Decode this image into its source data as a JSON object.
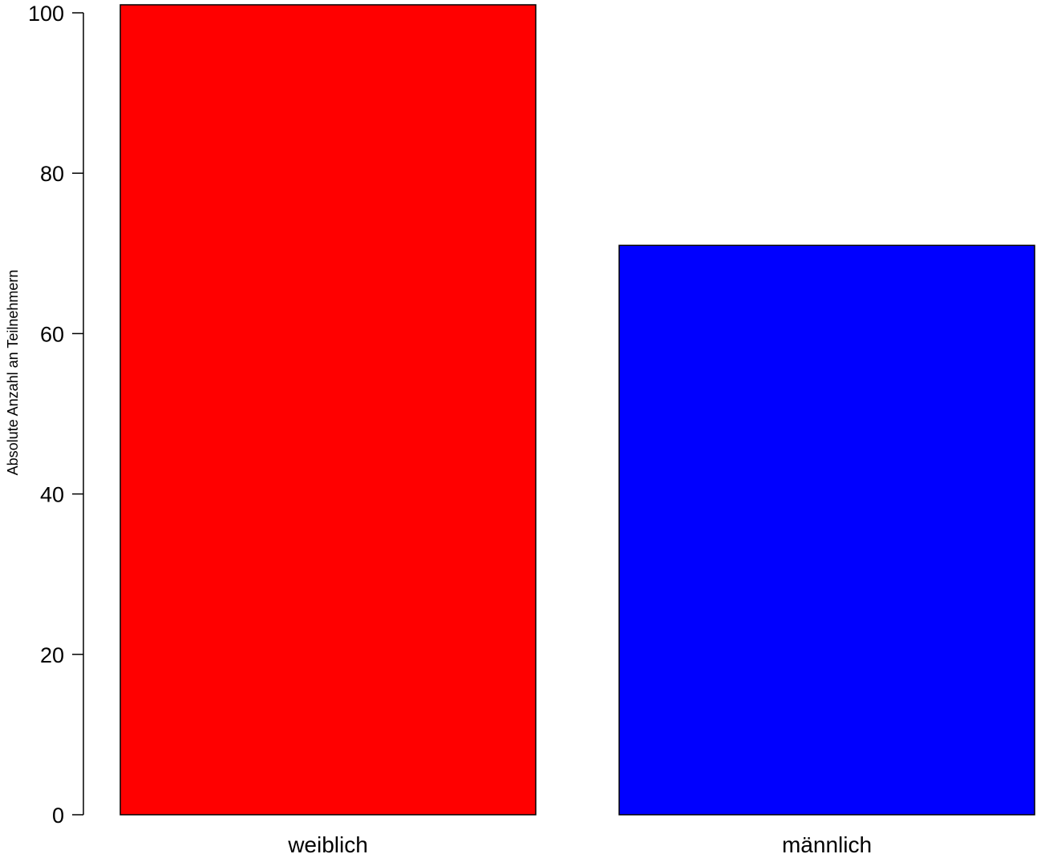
{
  "chart_data": {
    "type": "bar",
    "categories": [
      "weiblich",
      "männlich"
    ],
    "values": [
      101,
      71
    ],
    "colors": [
      "#ff0000",
      "#0000ff"
    ],
    "title": "",
    "xlabel": "",
    "ylabel": "Absolute Anzahl an Teilnehmern",
    "ylim": [
      0,
      100
    ],
    "yticks": [
      0,
      20,
      40,
      60,
      80,
      100
    ],
    "grid": false,
    "legend": "none"
  }
}
